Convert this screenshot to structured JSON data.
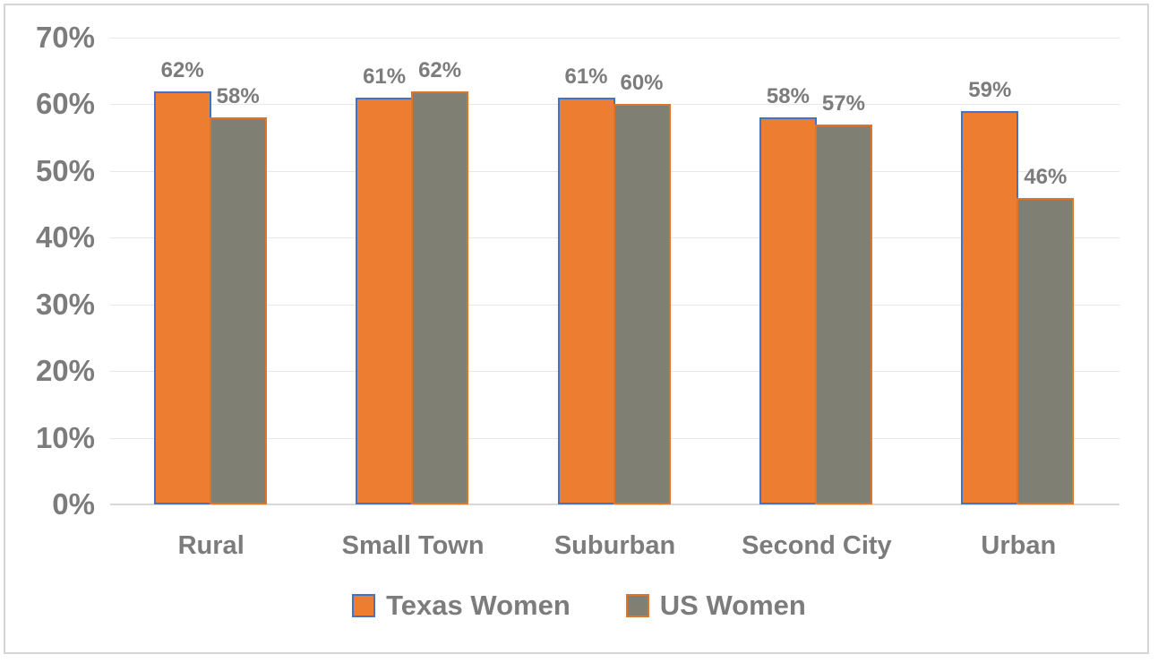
{
  "chart_data": {
    "type": "bar",
    "title": "",
    "categories": [
      "Rural",
      "Small Town",
      "Suburban",
      "Second City",
      "Urban"
    ],
    "series": [
      {
        "name": "Texas Women",
        "fill_color": "#ED7D31",
        "border_color": "#4472C4",
        "values": [
          62,
          61,
          61,
          58,
          59
        ],
        "data_labels": [
          "62%",
          "61%",
          "61%",
          "58%",
          "59%"
        ]
      },
      {
        "name": "US Women",
        "fill_color": "#7F7F73",
        "border_color": "#E0752A",
        "values": [
          58,
          62,
          60,
          57,
          46
        ],
        "data_labels": [
          "58%",
          "62%",
          "60%",
          "57%",
          "46%"
        ]
      }
    ],
    "y_axis": {
      "min": 0,
      "max": 70,
      "ticks": [
        {
          "value": 0,
          "label": "0%"
        },
        {
          "value": 10,
          "label": "10%"
        },
        {
          "value": 20,
          "label": "20%"
        },
        {
          "value": 30,
          "label": "30%"
        },
        {
          "value": 40,
          "label": "40%"
        },
        {
          "value": 50,
          "label": "50%"
        },
        {
          "value": 60,
          "label": "60%"
        },
        {
          "value": 70,
          "label": "70%"
        }
      ]
    },
    "grid": "horizontal",
    "legend_position": "bottom"
  },
  "colors": {
    "text": "#7C7C7C",
    "gridline": "#E7E7E7",
    "axis_line": "#D9D9D9",
    "frame": "#D6D6D6",
    "background": "#FFFFFF"
  }
}
